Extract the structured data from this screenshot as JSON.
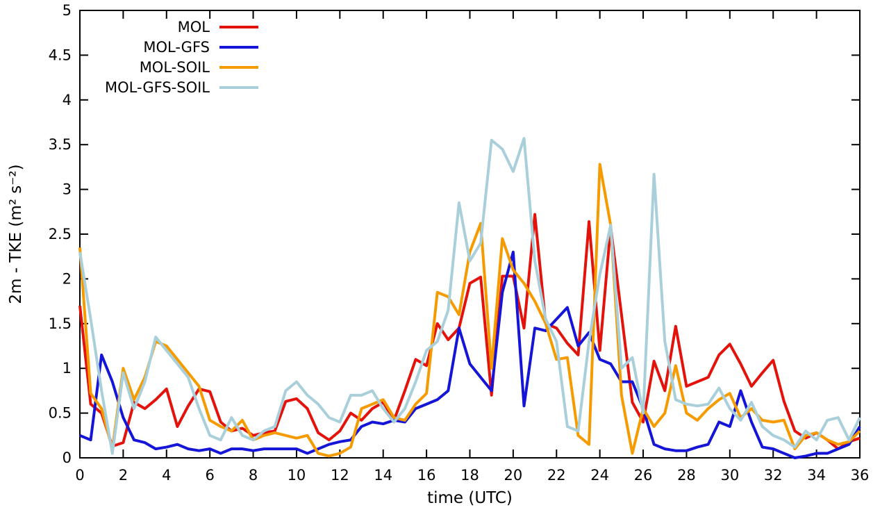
{
  "chart_data": {
    "type": "line",
    "title": "",
    "xlabel": "time (UTC)",
    "ylabel": "2m - TKE (m² s⁻²)",
    "xlim": [
      0,
      36
    ],
    "ylim": [
      0,
      5
    ],
    "xticks": [
      0,
      2,
      4,
      6,
      8,
      10,
      12,
      14,
      16,
      18,
      20,
      22,
      24,
      26,
      28,
      30,
      32,
      34,
      36
    ],
    "yticks": [
      0,
      0.5,
      1,
      1.5,
      2,
      2.5,
      3,
      3.5,
      4,
      4.5,
      5
    ],
    "ytick_labels": [
      "0",
      "0.5",
      "1",
      "1.5",
      "2",
      "2.5",
      "3",
      "3.5",
      "4",
      "4.5",
      "5"
    ],
    "grid": false,
    "legend_position": "top-left-inside",
    "background_color": "#ffffff",
    "axis_color": "#000000",
    "x": [
      0,
      0.5,
      1,
      1.5,
      2,
      2.5,
      3,
      3.5,
      4,
      4.5,
      5,
      5.5,
      6,
      6.5,
      7,
      7.5,
      8,
      8.5,
      9,
      9.5,
      10,
      10.5,
      11,
      11.5,
      12,
      12.5,
      13,
      13.5,
      14,
      14.5,
      15,
      15.5,
      16,
      16.5,
      17,
      17.5,
      18,
      18.5,
      19,
      19.5,
      20,
      20.5,
      21,
      21.5,
      22,
      22.5,
      23,
      23.5,
      24,
      24.5,
      25,
      25.5,
      26,
      26.5,
      27,
      27.5,
      28,
      28.5,
      29,
      29.5,
      30,
      30.5,
      31,
      31.5,
      32,
      32.5,
      33,
      33.5,
      34,
      34.5,
      35,
      35.5,
      36
    ],
    "series": [
      {
        "name": "MOL",
        "color": "#e3120b",
        "values": [
          1.7,
          0.6,
          0.5,
          0.13,
          0.17,
          0.62,
          0.55,
          0.65,
          0.77,
          0.35,
          0.58,
          0.77,
          0.74,
          0.4,
          0.3,
          0.33,
          0.25,
          0.28,
          0.3,
          0.63,
          0.66,
          0.55,
          0.28,
          0.2,
          0.3,
          0.5,
          0.42,
          0.55,
          0.62,
          0.42,
          0.75,
          1.1,
          1.03,
          1.5,
          1.32,
          1.45,
          1.95,
          2.02,
          0.7,
          2.03,
          2.03,
          1.45,
          2.72,
          1.5,
          1.45,
          1.28,
          1.15,
          2.64,
          1.2,
          2.58,
          1.6,
          0.62,
          0.4,
          1.08,
          0.75,
          1.47,
          0.8,
          0.85,
          0.9,
          1.15,
          1.27,
          1.05,
          0.8,
          0.95,
          1.09,
          0.63,
          0.3,
          0.22,
          0.28,
          0.2,
          0.1,
          0.18,
          0.22
        ]
      },
      {
        "name": "MOL-GFS",
        "color": "#1515d8",
        "values": [
          0.25,
          0.2,
          1.15,
          0.85,
          0.45,
          0.2,
          0.17,
          0.1,
          0.12,
          0.15,
          0.1,
          0.08,
          0.1,
          0.05,
          0.1,
          0.1,
          0.08,
          0.1,
          0.1,
          0.1,
          0.1,
          0.05,
          0.1,
          0.15,
          0.18,
          0.2,
          0.35,
          0.4,
          0.38,
          0.42,
          0.4,
          0.55,
          0.6,
          0.65,
          0.75,
          1.45,
          1.05,
          0.9,
          0.75,
          1.85,
          2.3,
          0.58,
          1.45,
          1.42,
          1.55,
          1.68,
          1.25,
          1.4,
          1.1,
          1.05,
          0.85,
          0.85,
          0.55,
          0.15,
          0.1,
          0.08,
          0.08,
          0.12,
          0.15,
          0.4,
          0.35,
          0.75,
          0.4,
          0.12,
          0.1,
          0.05,
          0.0,
          0.02,
          0.05,
          0.05,
          0.1,
          0.15,
          0.35
        ]
      },
      {
        "name": "MOL-SOIL",
        "color": "#f59b00",
        "values": [
          2.35,
          0.72,
          0.55,
          0.1,
          1.0,
          0.65,
          0.9,
          1.3,
          1.25,
          1.1,
          0.95,
          0.8,
          0.42,
          0.35,
          0.3,
          0.42,
          0.2,
          0.25,
          0.28,
          0.25,
          0.22,
          0.25,
          0.05,
          0.02,
          0.05,
          0.12,
          0.55,
          0.6,
          0.65,
          0.45,
          0.42,
          0.6,
          0.72,
          1.85,
          1.8,
          1.6,
          2.3,
          2.62,
          1.0,
          2.45,
          2.1,
          1.95,
          1.75,
          1.5,
          1.1,
          1.12,
          0.25,
          0.15,
          3.28,
          2.6,
          0.7,
          0.05,
          0.55,
          0.35,
          0.5,
          1.03,
          0.5,
          0.42,
          0.55,
          0.65,
          0.72,
          0.45,
          0.55,
          0.42,
          0.4,
          0.42,
          0.1,
          0.25,
          0.28,
          0.2,
          0.15,
          0.18,
          0.3
        ]
      },
      {
        "name": "MOL-GFS-SOIL",
        "color": "#a9cfda",
        "values": [
          2.3,
          1.55,
          0.75,
          0.05,
          0.95,
          0.55,
          0.85,
          1.35,
          1.2,
          1.05,
          0.9,
          0.55,
          0.25,
          0.2,
          0.45,
          0.25,
          0.2,
          0.3,
          0.35,
          0.75,
          0.85,
          0.7,
          0.6,
          0.45,
          0.4,
          0.7,
          0.7,
          0.75,
          0.55,
          0.4,
          0.55,
          0.85,
          1.2,
          1.3,
          1.65,
          2.85,
          2.2,
          2.4,
          3.55,
          3.45,
          3.2,
          3.57,
          2.2,
          1.55,
          1.3,
          0.35,
          0.3,
          1.3,
          2.05,
          2.6,
          1.0,
          1.12,
          0.5,
          3.17,
          1.3,
          0.65,
          0.6,
          0.58,
          0.6,
          0.78,
          0.55,
          0.42,
          0.62,
          0.35,
          0.25,
          0.2,
          0.12,
          0.3,
          0.2,
          0.42,
          0.45,
          0.2,
          0.45
        ]
      }
    ]
  }
}
